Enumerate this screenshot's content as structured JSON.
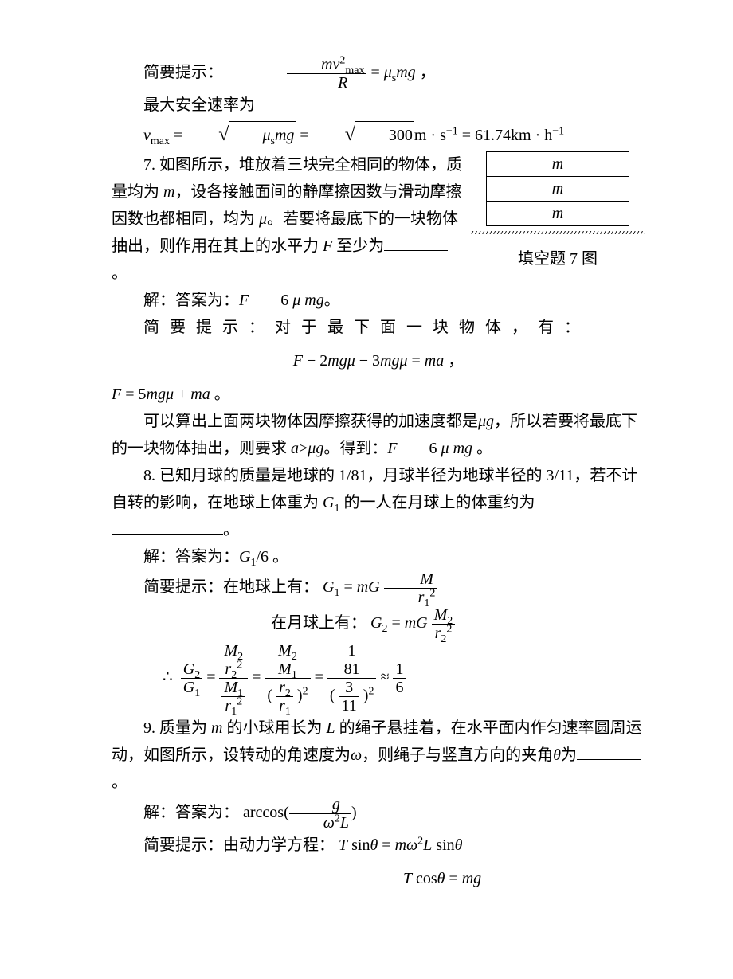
{
  "page": {
    "hint_label": "简要提示：",
    "eq_centripetal_html": "<span class='frac'><span class='num'><span class='italic'>m</span><span class='italic'>v</span><sup>2</sup><sub>max</sub></span><span class='den'><span class='italic'>R</span></span></span> = <span class='italic'>μ</span><sub>s</sub><span class='italic'>mg</span> ，",
    "line_vmax_pre": "最大安全速率为",
    "eq_vmax_html": "<span class='italic'>v</span><sub>max</sub> = <span class='sqrt'><span class='sqrt-body'><span class='italic'>μ</span><sub>s</sub><span class='italic'>mg</span></span></span> = <span class='sqrt'><span class='sqrt-body'>300</span></span>m · s<sup>−1</sup> = 61.74km · h<sup>−1</sup>",
    "q7": {
      "text1_html": "7. 如图所示，堆放着三块完全相同的物体，质量均为 <span class='italic'>m</span>，设各接触面间的静摩擦因数与滑动摩擦因数也都相同，均为 <span class='italic'>μ</span>。若要将最底下的一块物体抽出，则作用在其上的水平力 <span class='italic'>F</span> 至少为<span class='blank'></span>。",
      "answer_html": "解：答案为：<span class='italic'>F</span>　　6 <span class='italic'>μ mg</span>。",
      "hint_html": "简 要 提 示 ： 对 于 最 下 面 一 块 物 体 ， 有 ：",
      "eq_center_html": "<span class='italic'>F</span> − 2<span class='italic'>mgμ</span> − 3<span class='italic'>mgμ</span> = <span class='italic'>ma</span> ，",
      "eq_F_html": "<span class='italic'>F</span> = 5<span class='italic'>mgμ</span> + <span class='italic'>ma</span> 。",
      "para2_html": "可以算出上面两块物体因摩擦获得的加速度都是<span class='italic'>μg</span>，所以若要将最底下的一块物体抽出，则要求 <span class='italic'>a</span>><span class='italic'>μg</span>。得到：<span class='italic'>F</span>　　6 <span class='italic'>μ mg</span> 。",
      "fig_caption": "填空题 7 图",
      "block_label": "m"
    },
    "q8": {
      "text1_html": "8. 已知月球的质量是地球的 1/81，月球半径为地球半径的 3/11，若不计自转的影响，在地球上体重为 <span class='italic'>G</span><sub>1</sub> 的一人在月球上的体重约为<span class='blank blank-long'></span>。",
      "answer_html": "解：答案为：<span class='italic'>G</span><sub>1</sub>/6 。",
      "hint_earth_html": "简要提示：在地球上有：&nbsp;<span class='italic'>G</span><sub>1</sub> = <span class='italic'>mG</span> <span class='frac'><span class='num'><span class='italic'>M</span></span><span class='den'><span class='italic'>r</span><sub>1</sub><sup>2</sup></span></span>",
      "hint_moon_html": "在月球上有：&nbsp;<span class='italic'>G</span><sub>2</sub> = <span class='italic'>mG</span> <span class='frac'><span class='num'><span class='italic'>M</span><sub>2</sub></span><span class='den'><span class='italic'>r</span><sub>2</sub><sup>2</sup></span></span>",
      "ratio_html": "∴&nbsp;&nbsp;<span class='frac'><span class='num'><span class='italic'>G</span><sub>2</sub></span><span class='den'><span class='italic'>G</span><sub>1</sub></span></span> = <span class='frac'><span class='num'><span class='frac'><span class='num'><span class='italic'>M</span><sub>2</sub></span><span class='den'><span class='italic'>r</span><sub>2</sub><sup>2</sup></span></span></span><span class='den'><span class='frac'><span class='num'><span class='italic'>M</span><sub>1</sub></span><span class='den'><span class='italic'>r</span><sub>1</sub><sup>2</sup></span></span></span></span> = <span class='frac'><span class='num'><span class='frac'><span class='num'><span class='italic'>M</span><sub>2</sub></span><span class='den'><span class='italic'>M</span><sub>1</sub></span></span></span><span class='den'>( <span class='frac'><span class='num'><span class='italic'>r</span><sub>2</sub></span><span class='den'><span class='italic'>r</span><sub>1</sub></span></span> )<sup>2</sup></span></span> = <span class='frac'><span class='num'><span class='frac'><span class='num'>1</span><span class='den'>81</span></span></span><span class='den'>( <span class='frac'><span class='num'>3</span><span class='den'>11</span></span> )<sup>2</sup></span></span> ≈ <span class='frac'><span class='num'>1</span><span class='den'>6</span></span>"
    },
    "q9": {
      "text1_html": "9. 质量为 <span class='italic'>m</span> 的小球用长为 <span class='italic'>L</span> 的绳子悬挂着，在水平面内作匀速率圆周运动，如图所示，设转动的角速度为<span class='italic'>ω</span>，则绳子与竖直方向的夹角<span class='italic'>θ</span>为<span class='blank'></span>。",
      "answer_html": "解：答案为：&nbsp;arccos(<span class='frac'><span class='num'><span class='italic'>g</span></span><span class='den'><span class='italic'>ω</span><sup>2</sup><span class='italic'>L</span></span></span>)",
      "hint_html": "简要提示：由动力学方程：&nbsp;<span class='italic'>T</span> sin<span class='italic'>θ</span> = <span class='italic'>mω</span><sup>2</sup><span class='italic'>L</span> sin<span class='italic'>θ</span>",
      "eq_cos_html": "<span class='italic'>T</span> cos<span class='italic'>θ</span> = <span class='italic'>mg</span>"
    }
  }
}
